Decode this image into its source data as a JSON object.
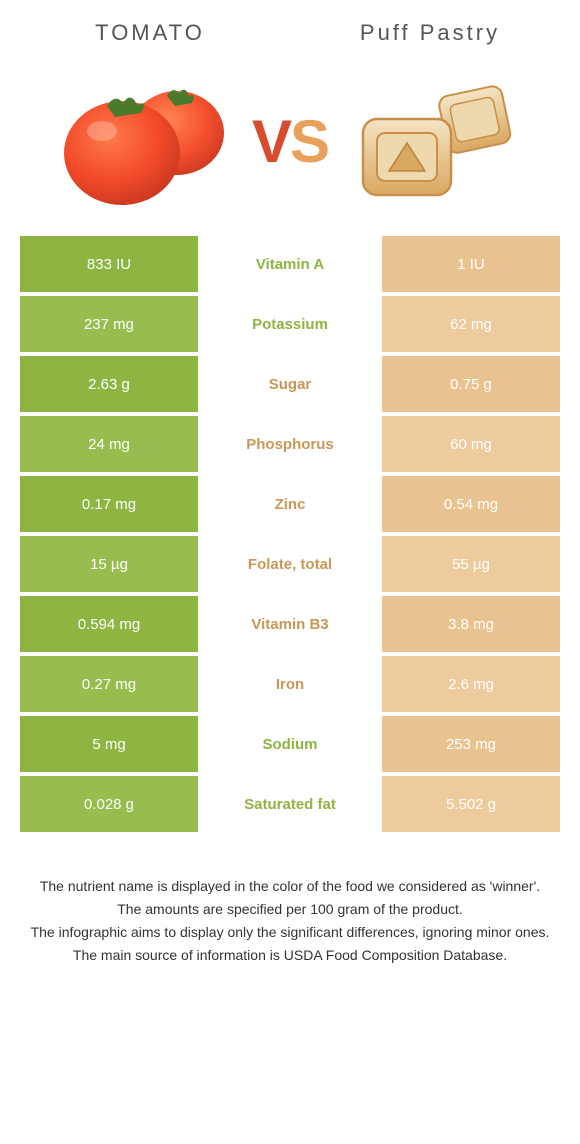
{
  "header": {
    "left_title": "TOMATO",
    "right_title": "Puff Pastry",
    "vs_v": "V",
    "vs_s": "S"
  },
  "colors": {
    "tomato_green": "#8eb542",
    "tomato_green_alt": "#99bc4e",
    "pastry_tan": "#e8c28f",
    "pastry_tan_alt": "#edcb9d",
    "label_green": "#8eb542",
    "label_tan": "#c99856",
    "footer_text": "#333333",
    "title_text": "#555555"
  },
  "table": {
    "rows": [
      {
        "left": "833 IU",
        "label": "Vitamin A",
        "right": "1 IU",
        "winner": "left"
      },
      {
        "left": "237 mg",
        "label": "Potassium",
        "right": "62 mg",
        "winner": "left"
      },
      {
        "left": "2.63 g",
        "label": "Sugar",
        "right": "0.75 g",
        "winner": "right"
      },
      {
        "left": "24 mg",
        "label": "Phosphorus",
        "right": "60 mg",
        "winner": "right"
      },
      {
        "left": "0.17 mg",
        "label": "Zinc",
        "right": "0.54 mg",
        "winner": "right"
      },
      {
        "left": "15 µg",
        "label": "Folate, total",
        "right": "55 µg",
        "winner": "right"
      },
      {
        "left": "0.594 mg",
        "label": "Vitamin B3",
        "right": "3.8 mg",
        "winner": "right"
      },
      {
        "left": "0.27 mg",
        "label": "Iron",
        "right": "2.6 mg",
        "winner": "right"
      },
      {
        "left": "5 mg",
        "label": "Sodium",
        "right": "253 mg",
        "winner": "left"
      },
      {
        "left": "0.028 g",
        "label": "Saturated fat",
        "right": "5.502 g",
        "winner": "left"
      }
    ]
  },
  "footer": {
    "l1": "The nutrient name is displayed in the color of the food we considered as 'winner'.",
    "l2": "The amounts are specified per 100 gram of the product.",
    "l3": "The infographic aims to display only the significant differences, ignoring minor ones.",
    "l4": "The main source of information is USDA Food Composition Database."
  }
}
